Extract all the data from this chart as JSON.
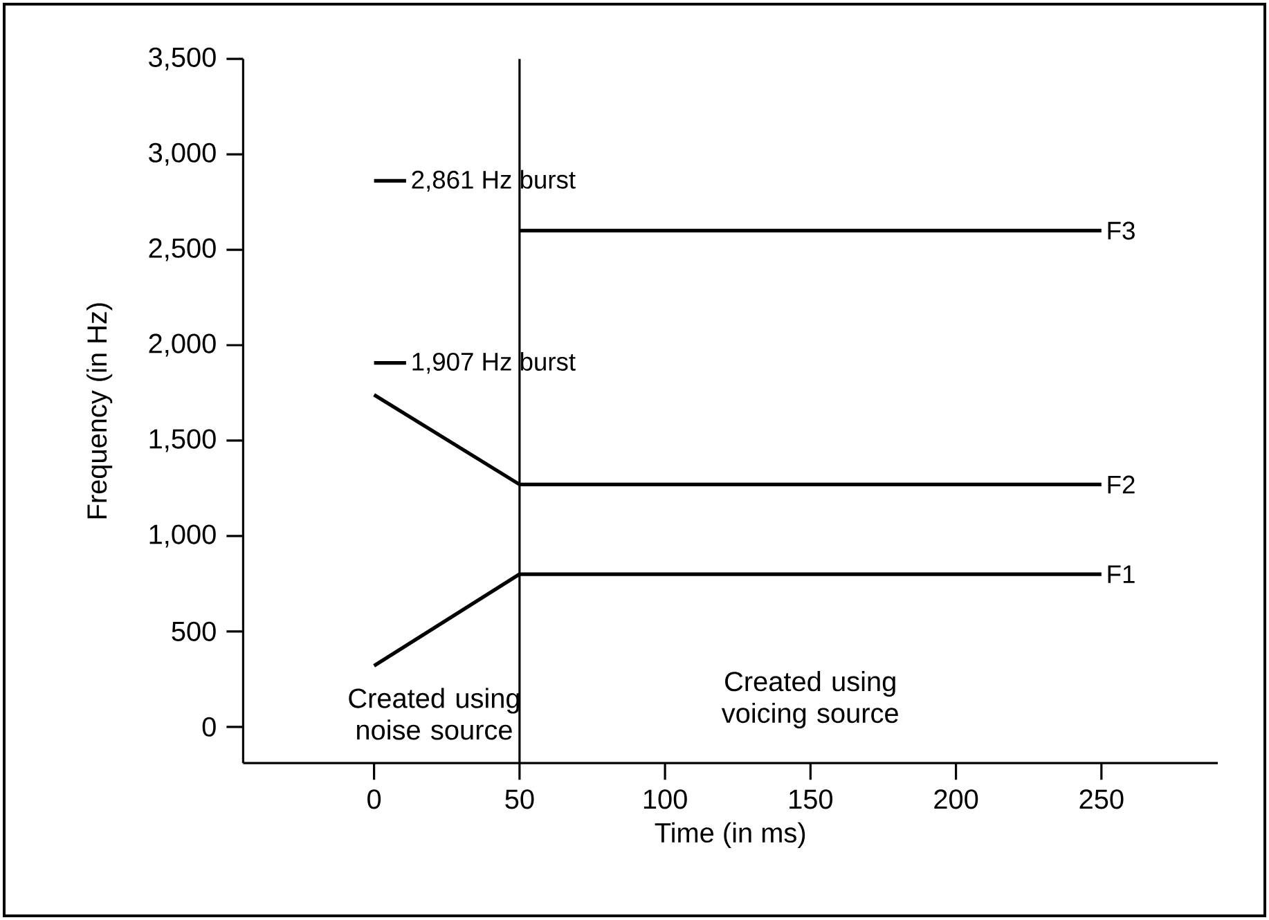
{
  "chart_data": {
    "type": "line",
    "xlabel": "Time (in ms)",
    "ylabel": "Frequency (in Hz)",
    "xlim": [
      -45,
      290
    ],
    "ylim": [
      -190,
      3500
    ],
    "xticks": [
      0,
      50,
      100,
      150,
      200,
      250
    ],
    "yticks": [
      0,
      500,
      {
        "value": 1000,
        "label": "1,000"
      },
      {
        "value": 1500,
        "label": "1,500"
      },
      {
        "value": 2000,
        "label": "2,000"
      },
      {
        "value": 2500,
        "label": "2,500"
      },
      {
        "value": 3000,
        "label": "3,000"
      },
      {
        "value": 3500,
        "label": "3,500"
      }
    ],
    "series": [
      {
        "name": "F1",
        "color": "#000000",
        "x": [
          0,
          50,
          250
        ],
        "values": [
          320,
          800,
          800
        ]
      },
      {
        "name": "F2",
        "color": "#000000",
        "x": [
          0,
          50,
          250
        ],
        "values": [
          1740,
          1270,
          1270
        ]
      },
      {
        "name": "F3",
        "color": "#000000",
        "x": [
          50,
          250
        ],
        "values": [
          2600,
          2600
        ]
      },
      {
        "name": "1,907 Hz burst",
        "color": "#000000",
        "x": [
          0,
          11
        ],
        "values": [
          1907,
          1907
        ]
      },
      {
        "name": "2,861 Hz burst",
        "color": "#000000",
        "x": [
          0,
          11
        ],
        "values": [
          2861,
          2861
        ]
      }
    ],
    "ref_lines": [
      {
        "axis": "x",
        "value": 50
      }
    ],
    "annotations": [
      "Created using noise source",
      "Created using voicing source"
    ],
    "grid": false,
    "marker": "none",
    "line_style": "solid"
  }
}
